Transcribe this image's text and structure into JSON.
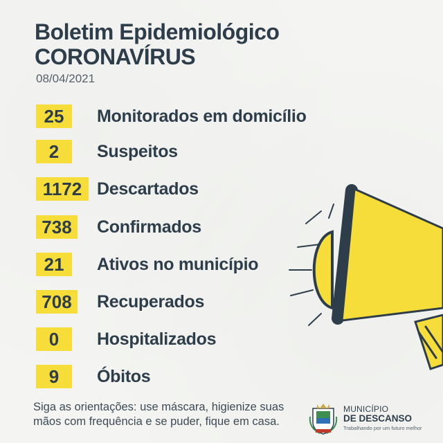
{
  "header": {
    "title": "Boletim Epidemiológico",
    "subtitle": "CORONAVÍRUS",
    "date": "08/04/2021"
  },
  "stats": [
    {
      "value": "25",
      "label": "Monitorados em domicílio"
    },
    {
      "value": "2",
      "label": "Suspeitos"
    },
    {
      "value": "1172",
      "label": "Descartados"
    },
    {
      "value": "738",
      "label": "Confirmados"
    },
    {
      "value": "21",
      "label": "Ativos no município"
    },
    {
      "value": "708",
      "label": "Recuperados"
    },
    {
      "value": "0",
      "label": "Hospitalizados"
    },
    {
      "value": "9",
      "label": "Óbitos"
    }
  ],
  "footer": {
    "guidance": "Siga as orientações: use máscara, higienize suas mãos com frequência e se puder, fique em casa."
  },
  "logo": {
    "line1": "MUNICÍPIO",
    "line2": "DE DESCANSO",
    "line3": "Trabalhando por um futuro melhor",
    "icon": "municipal-crest-icon"
  },
  "colors": {
    "accent_yellow": "#f7dd3a",
    "text_dark": "#2e3d4a",
    "background": "#f4f5f2"
  },
  "illustration": "megaphone-icon"
}
